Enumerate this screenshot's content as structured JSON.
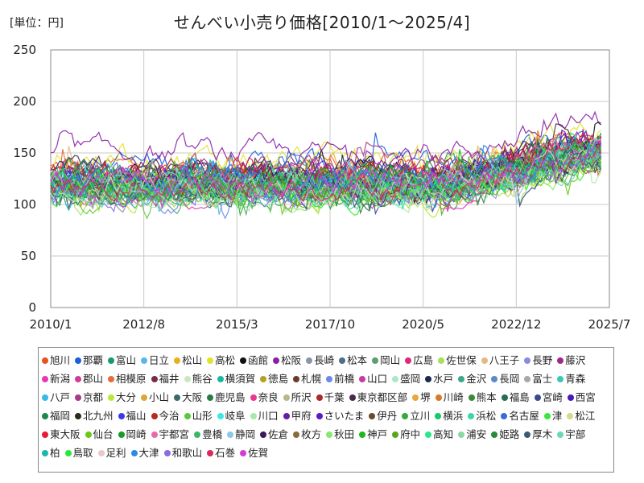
{
  "chart_data": {
    "type": "line",
    "title": "せんべい小売り価格[2010/1～2025/4]",
    "unit_label": "[単位：円]",
    "ylim": [
      0,
      250
    ],
    "yticks": [
      "0",
      "50",
      "100",
      "150",
      "200",
      "250"
    ],
    "xticks": [
      "2010/1",
      "2012/8",
      "2015/3",
      "2017/10",
      "2020/5",
      "2022/12",
      "2025/7"
    ],
    "x_range": [
      "2010/1",
      "2025/7"
    ],
    "grid": true,
    "legend_position": "bottom",
    "series": [
      {
        "name": "旭川",
        "color": "#e8541e",
        "base": 135
      },
      {
        "name": "那覇",
        "color": "#1a5fe0",
        "base": 140
      },
      {
        "name": "富山",
        "color": "#179b6a",
        "base": 128
      },
      {
        "name": "日立",
        "color": "#5ab4ee",
        "base": 118
      },
      {
        "name": "松山",
        "color": "#e8b020",
        "base": 130
      },
      {
        "name": "高松",
        "color": "#e3e32a",
        "base": 145
      },
      {
        "name": "函館",
        "color": "#111111",
        "base": 125
      },
      {
        "name": "松阪",
        "color": "#8a1fa6",
        "base": 150
      },
      {
        "name": "長崎",
        "color": "#8a96a8",
        "base": 115
      },
      {
        "name": "松本",
        "color": "#4d6f8a",
        "base": 120
      },
      {
        "name": "岡山",
        "color": "#5a9e72",
        "base": 112
      },
      {
        "name": "広島",
        "color": "#e0287a",
        "base": 122
      },
      {
        "name": "佐世保",
        "color": "#a8e05a",
        "base": 108
      },
      {
        "name": "八王子",
        "color": "#e6b888",
        "base": 126
      },
      {
        "name": "長野",
        "color": "#8a8ae0",
        "base": 118
      },
      {
        "name": "藤沢",
        "color": "#a02a8a",
        "base": 132
      },
      {
        "name": "新潟",
        "color": "#e838b8",
        "base": 110
      },
      {
        "name": "郡山",
        "color": "#d43a9a",
        "base": 116
      },
      {
        "name": "相模原",
        "color": "#ea6a3a",
        "base": 124
      },
      {
        "name": "福井",
        "color": "#7a2a4a",
        "base": 128
      },
      {
        "name": "熊谷",
        "color": "#c8e8c0",
        "base": 114
      },
      {
        "name": "横須賀",
        "color": "#1ab8a0",
        "base": 119
      },
      {
        "name": "徳島",
        "color": "#b8a020",
        "base": 121
      },
      {
        "name": "札幌",
        "color": "#6a3a2a",
        "base": 127
      },
      {
        "name": "前橋",
        "color": "#6a8ae8",
        "base": 111
      },
      {
        "name": "山口",
        "color": "#c83aa8",
        "base": 117
      },
      {
        "name": "盛岡",
        "color": "#a8e8c8",
        "base": 120
      },
      {
        "name": "水戸",
        "color": "#1a2a4a",
        "base": 129
      },
      {
        "name": "金沢",
        "color": "#3aa88a",
        "base": 113
      },
      {
        "name": "長岡",
        "color": "#5a8ac8",
        "base": 118
      },
      {
        "name": "富士",
        "color": "#a8a8a8",
        "base": 122
      },
      {
        "name": "青森",
        "color": "#3ac8b8",
        "base": 116
      },
      {
        "name": "八戸",
        "color": "#3ab8e8",
        "base": 119
      },
      {
        "name": "京都",
        "color": "#a83a8a",
        "base": 131
      },
      {
        "name": "大分",
        "color": "#b8e83a",
        "base": 110
      },
      {
        "name": "小山",
        "color": "#d8a83a",
        "base": 123
      },
      {
        "name": "大阪",
        "color": "#3a6a6a",
        "base": 120
      },
      {
        "name": "鹿児島",
        "color": "#2a7a4a",
        "base": 115
      },
      {
        "name": "奈良",
        "color": "#e83a8a",
        "base": 126
      },
      {
        "name": "所沢",
        "color": "#b8b88a",
        "base": 117
      },
      {
        "name": "千葉",
        "color": "#a82a2a",
        "base": 121
      },
      {
        "name": "東京都区部",
        "color": "#4a2a4a",
        "base": 133
      },
      {
        "name": "堺",
        "color": "#e8a83a",
        "base": 119
      },
      {
        "name": "川崎",
        "color": "#d87a2a",
        "base": 125
      },
      {
        "name": "熊本",
        "color": "#3a8a3a",
        "base": 114
      },
      {
        "name": "福島",
        "color": "#2a6a5a",
        "base": 118
      },
      {
        "name": "宮崎",
        "color": "#3a4a8a",
        "base": 112
      },
      {
        "name": "西宮",
        "color": "#4a1ab8",
        "base": 122
      },
      {
        "name": "福岡",
        "color": "#1a8a4a",
        "base": 127
      },
      {
        "name": "北九州",
        "color": "#2a2a1a",
        "base": 120
      },
      {
        "name": "福山",
        "color": "#3a3ae8",
        "base": 116
      },
      {
        "name": "今治",
        "color": "#b82a1a",
        "base": 124
      },
      {
        "name": "山形",
        "color": "#5ac83a",
        "base": 111
      },
      {
        "name": "岐阜",
        "color": "#3ae8e8",
        "base": 118
      },
      {
        "name": "川口",
        "color": "#a8e8a8",
        "base": 113
      },
      {
        "name": "甲府",
        "color": "#6a1aa8",
        "base": 121
      },
      {
        "name": "さいたま",
        "color": "#5a1ac8",
        "base": 128
      },
      {
        "name": "伊丹",
        "color": "#6a4a2a",
        "base": 119
      },
      {
        "name": "立川",
        "color": "#3aa83a",
        "base": 115
      },
      {
        "name": "横浜",
        "color": "#1ac86a",
        "base": 124
      },
      {
        "name": "浜松",
        "color": "#3ad8a8",
        "base": 117
      },
      {
        "name": "名古屋",
        "color": "#3a6ad8",
        "base": 122
      },
      {
        "name": "津",
        "color": "#3ae83a",
        "base": 112
      },
      {
        "name": "松江",
        "color": "#d8d88a",
        "base": 118
      },
      {
        "name": "東大阪",
        "color": "#e81a3a",
        "base": 126
      },
      {
        "name": "仙台",
        "color": "#6ac81a",
        "base": 114
      },
      {
        "name": "岡崎",
        "color": "#1a9a2a",
        "base": 120
      },
      {
        "name": "宇都宮",
        "color": "#e86aa8",
        "base": 123
      },
      {
        "name": "豊橋",
        "color": "#3ab86a",
        "base": 116
      },
      {
        "name": "静岡",
        "color": "#8ac8e8",
        "base": 121
      },
      {
        "name": "佐倉",
        "color": "#3a1a5a",
        "base": 119
      },
      {
        "name": "枚方",
        "color": "#8a6a3a",
        "base": 115
      },
      {
        "name": "秋田",
        "color": "#8ae86a",
        "base": 110
      },
      {
        "name": "神戸",
        "color": "#1ab81a",
        "base": 125
      },
      {
        "name": "府中",
        "color": "#5aa81a",
        "base": 118
      },
      {
        "name": "高知",
        "color": "#2ae88a",
        "base": 113
      },
      {
        "name": "浦安",
        "color": "#8ad8a8",
        "base": 122
      },
      {
        "name": "姫路",
        "color": "#2a8a3a",
        "base": 117
      },
      {
        "name": "厚木",
        "color": "#3a5a7a",
        "base": 120
      },
      {
        "name": "宇部",
        "color": "#6ad8b8",
        "base": 114
      },
      {
        "name": "柏",
        "color": "#1ab8a8",
        "base": 121
      },
      {
        "name": "鳥取",
        "color": "#2ae83a",
        "base": 116
      },
      {
        "name": "足利",
        "color": "#e8c8c8",
        "base": 119
      },
      {
        "name": "大津",
        "color": "#2a8ae8",
        "base": 124
      },
      {
        "name": "和歌山",
        "color": "#8a6ae8",
        "base": 112
      },
      {
        "name": "石巻",
        "color": "#d82a5a",
        "base": 118
      },
      {
        "name": "佐賀",
        "color": "#d83ad8",
        "base": 122
      }
    ]
  }
}
